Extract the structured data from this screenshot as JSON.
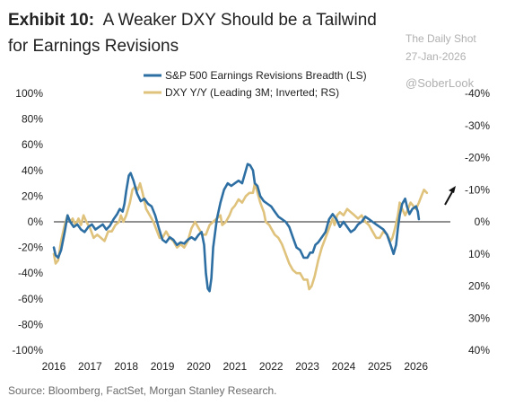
{
  "header": {
    "title_lead": "Exhibit 10:",
    "title_rest": "A Weaker DXY Should be a Tailwind for Earnings Revisions"
  },
  "watermark": {
    "publisher": "The Daily Shot",
    "date": "27-Jan-2026",
    "handle": "@SoberLook"
  },
  "footer": {
    "source": "Source: Bloomberg, FactSet, Morgan Stanley Research."
  },
  "chart_data": {
    "type": "line",
    "grid": false,
    "legend_position": "top-center",
    "x_ticks": [
      2016,
      2017,
      2018,
      2019,
      2020,
      2021,
      2022,
      2023,
      2024,
      2025,
      2026
    ],
    "xlim": [
      2016,
      2026.85
    ],
    "left_axis": {
      "ylim": [
        -100,
        100
      ],
      "ticks": [
        100,
        80,
        60,
        40,
        20,
        0,
        -20,
        -40,
        -60,
        -80,
        -100
      ],
      "tick_labels": [
        "100%",
        "80%",
        "60%",
        "40%",
        "20%",
        "0%",
        "-20%",
        "-40%",
        "-60%",
        "-80%",
        "-100%"
      ]
    },
    "right_axis": {
      "inverted": true,
      "ylim": [
        -40,
        40
      ],
      "ticks": [
        -40,
        -30,
        -20,
        -10,
        0,
        10,
        20,
        30,
        40
      ],
      "tick_labels": [
        "-40%",
        "-30%",
        "-20%",
        "-10%",
        "0%",
        "10%",
        "20%",
        "30%",
        "40%"
      ]
    },
    "zero_line": true,
    "series": [
      {
        "name": "S&P 500 Earnings Revisions Breadth (LS)",
        "axis": "left",
        "color": "#2e6fa3",
        "points": [
          [
            2016.0,
            -20
          ],
          [
            2016.05,
            -26
          ],
          [
            2016.12,
            -28
          ],
          [
            2016.2,
            -22
          ],
          [
            2016.3,
            -8
          ],
          [
            2016.38,
            5
          ],
          [
            2016.45,
            0
          ],
          [
            2016.55,
            -4
          ],
          [
            2016.65,
            -2
          ],
          [
            2016.75,
            -6
          ],
          [
            2016.85,
            -8
          ],
          [
            2016.95,
            -4
          ],
          [
            2017.05,
            -2
          ],
          [
            2017.15,
            -6
          ],
          [
            2017.25,
            -4
          ],
          [
            2017.35,
            -2
          ],
          [
            2017.45,
            -6
          ],
          [
            2017.55,
            -3
          ],
          [
            2017.65,
            2
          ],
          [
            2017.75,
            6
          ],
          [
            2017.82,
            10
          ],
          [
            2017.9,
            8
          ],
          [
            2017.95,
            14
          ],
          [
            2018.0,
            24
          ],
          [
            2018.07,
            36
          ],
          [
            2018.12,
            38
          ],
          [
            2018.2,
            32
          ],
          [
            2018.3,
            22
          ],
          [
            2018.4,
            16
          ],
          [
            2018.5,
            18
          ],
          [
            2018.6,
            14
          ],
          [
            2018.7,
            12
          ],
          [
            2018.8,
            5
          ],
          [
            2018.9,
            -5
          ],
          [
            2019.0,
            -14
          ],
          [
            2019.1,
            -16
          ],
          [
            2019.2,
            -12
          ],
          [
            2019.3,
            -14
          ],
          [
            2019.4,
            -18
          ],
          [
            2019.5,
            -16
          ],
          [
            2019.6,
            -17
          ],
          [
            2019.7,
            -14
          ],
          [
            2019.8,
            -12
          ],
          [
            2019.9,
            -14
          ],
          [
            2020.0,
            -10
          ],
          [
            2020.08,
            -8
          ],
          [
            2020.15,
            -18
          ],
          [
            2020.2,
            -40
          ],
          [
            2020.25,
            -52
          ],
          [
            2020.3,
            -54
          ],
          [
            2020.35,
            -44
          ],
          [
            2020.4,
            -20
          ],
          [
            2020.5,
            2
          ],
          [
            2020.6,
            15
          ],
          [
            2020.7,
            25
          ],
          [
            2020.8,
            30
          ],
          [
            2020.9,
            28
          ],
          [
            2021.0,
            30
          ],
          [
            2021.1,
            32
          ],
          [
            2021.2,
            30
          ],
          [
            2021.3,
            40
          ],
          [
            2021.35,
            45
          ],
          [
            2021.42,
            44
          ],
          [
            2021.5,
            40
          ],
          [
            2021.55,
            30
          ],
          [
            2021.62,
            28
          ],
          [
            2021.7,
            20
          ],
          [
            2021.8,
            16
          ],
          [
            2021.9,
            14
          ],
          [
            2022.0,
            12
          ],
          [
            2022.1,
            8
          ],
          [
            2022.2,
            4
          ],
          [
            2022.3,
            2
          ],
          [
            2022.4,
            0
          ],
          [
            2022.5,
            -4
          ],
          [
            2022.6,
            -12
          ],
          [
            2022.7,
            -20
          ],
          [
            2022.8,
            -22
          ],
          [
            2022.9,
            -28
          ],
          [
            2023.0,
            -28
          ],
          [
            2023.08,
            -24
          ],
          [
            2023.15,
            -24
          ],
          [
            2023.22,
            -18
          ],
          [
            2023.3,
            -16
          ],
          [
            2023.4,
            -12
          ],
          [
            2023.5,
            -8
          ],
          [
            2023.6,
            2
          ],
          [
            2023.7,
            6
          ],
          [
            2023.8,
            2
          ],
          [
            2023.9,
            -4
          ],
          [
            2024.0,
            0
          ],
          [
            2024.1,
            -4
          ],
          [
            2024.2,
            -8
          ],
          [
            2024.3,
            -6
          ],
          [
            2024.4,
            -2
          ],
          [
            2024.5,
            0
          ],
          [
            2024.6,
            4
          ],
          [
            2024.7,
            2
          ],
          [
            2024.8,
            0
          ],
          [
            2024.9,
            -2
          ],
          [
            2025.0,
            -4
          ],
          [
            2025.1,
            -6
          ],
          [
            2025.2,
            -10
          ],
          [
            2025.3,
            -18
          ],
          [
            2025.38,
            -25
          ],
          [
            2025.45,
            -18
          ],
          [
            2025.5,
            -5
          ],
          [
            2025.55,
            5
          ],
          [
            2025.62,
            14
          ],
          [
            2025.7,
            18
          ],
          [
            2025.75,
            12
          ],
          [
            2025.82,
            6
          ],
          [
            2025.9,
            10
          ],
          [
            2026.0,
            12
          ],
          [
            2026.05,
            8
          ],
          [
            2026.08,
            2
          ]
        ]
      },
      {
        "name": "DXY Y/Y (Leading 3M; Inverted; RS)",
        "axis": "right",
        "color": "#dfc27c",
        "points": [
          [
            2016.0,
            10
          ],
          [
            2016.05,
            13
          ],
          [
            2016.12,
            12
          ],
          [
            2016.2,
            6
          ],
          [
            2016.3,
            1
          ],
          [
            2016.38,
            -2
          ],
          [
            2016.45,
            0
          ],
          [
            2016.52,
            -1
          ],
          [
            2016.6,
            1
          ],
          [
            2016.68,
            -1
          ],
          [
            2016.75,
            1
          ],
          [
            2016.82,
            -2
          ],
          [
            2016.9,
            0
          ],
          [
            2017.0,
            2
          ],
          [
            2017.1,
            5
          ],
          [
            2017.2,
            4
          ],
          [
            2017.3,
            5
          ],
          [
            2017.4,
            6
          ],
          [
            2017.5,
            3
          ],
          [
            2017.6,
            3
          ],
          [
            2017.7,
            1
          ],
          [
            2017.8,
            0
          ],
          [
            2017.85,
            -2
          ],
          [
            2017.92,
            0
          ],
          [
            2018.0,
            -2
          ],
          [
            2018.1,
            -6
          ],
          [
            2018.17,
            -10
          ],
          [
            2018.25,
            -11
          ],
          [
            2018.32,
            -10
          ],
          [
            2018.38,
            -12
          ],
          [
            2018.45,
            -9
          ],
          [
            2018.55,
            -4
          ],
          [
            2018.65,
            -2
          ],
          [
            2018.75,
            0
          ],
          [
            2018.85,
            3
          ],
          [
            2018.92,
            5
          ],
          [
            2019.0,
            5
          ],
          [
            2019.1,
            3
          ],
          [
            2019.2,
            5
          ],
          [
            2019.3,
            6
          ],
          [
            2019.4,
            8
          ],
          [
            2019.5,
            7
          ],
          [
            2019.6,
            8
          ],
          [
            2019.7,
            6
          ],
          [
            2019.8,
            2
          ],
          [
            2019.9,
            0
          ],
          [
            2020.0,
            2
          ],
          [
            2020.1,
            4
          ],
          [
            2020.2,
            4
          ],
          [
            2020.3,
            1
          ],
          [
            2020.4,
            0
          ],
          [
            2020.5,
            -1
          ],
          [
            2020.6,
            -2
          ],
          [
            2020.65,
            1
          ],
          [
            2020.75,
            0
          ],
          [
            2020.85,
            -2
          ],
          [
            2020.92,
            -4
          ],
          [
            2021.0,
            -5
          ],
          [
            2021.1,
            -7
          ],
          [
            2021.2,
            -6
          ],
          [
            2021.3,
            -8
          ],
          [
            2021.4,
            -9
          ],
          [
            2021.5,
            -9
          ],
          [
            2021.55,
            -12
          ],
          [
            2021.6,
            -10
          ],
          [
            2021.7,
            -6
          ],
          [
            2021.8,
            -3
          ],
          [
            2021.85,
            0
          ],
          [
            2021.95,
            1
          ],
          [
            2022.0,
            2
          ],
          [
            2022.1,
            4
          ],
          [
            2022.2,
            5
          ],
          [
            2022.3,
            7
          ],
          [
            2022.4,
            10
          ],
          [
            2022.5,
            13
          ],
          [
            2022.6,
            15
          ],
          [
            2022.7,
            16
          ],
          [
            2022.8,
            16
          ],
          [
            2022.9,
            18
          ],
          [
            2023.0,
            18
          ],
          [
            2023.05,
            21
          ],
          [
            2023.12,
            20
          ],
          [
            2023.2,
            17
          ],
          [
            2023.3,
            12
          ],
          [
            2023.4,
            8
          ],
          [
            2023.5,
            5
          ],
          [
            2023.6,
            2
          ],
          [
            2023.7,
            -1
          ],
          [
            2023.75,
            1
          ],
          [
            2023.82,
            -2
          ],
          [
            2023.9,
            -3
          ],
          [
            2024.0,
            -2
          ],
          [
            2024.1,
            -4
          ],
          [
            2024.2,
            -3
          ],
          [
            2024.3,
            -2
          ],
          [
            2024.4,
            -1
          ],
          [
            2024.5,
            -2
          ],
          [
            2024.6,
            0
          ],
          [
            2024.7,
            1
          ],
          [
            2024.8,
            3
          ],
          [
            2024.9,
            5
          ],
          [
            2025.0,
            5
          ],
          [
            2025.1,
            3
          ],
          [
            2025.2,
            4
          ],
          [
            2025.3,
            6
          ],
          [
            2025.35,
            5
          ],
          [
            2025.42,
            2
          ],
          [
            2025.5,
            -2
          ],
          [
            2025.55,
            -6
          ],
          [
            2025.62,
            -4
          ],
          [
            2025.7,
            -2
          ],
          [
            2025.78,
            -4
          ],
          [
            2025.85,
            -6
          ],
          [
            2025.92,
            -5
          ],
          [
            2026.0,
            -4
          ],
          [
            2026.08,
            -6
          ],
          [
            2026.15,
            -8
          ],
          [
            2026.22,
            -10
          ],
          [
            2026.3,
            -9
          ]
        ]
      }
    ]
  }
}
